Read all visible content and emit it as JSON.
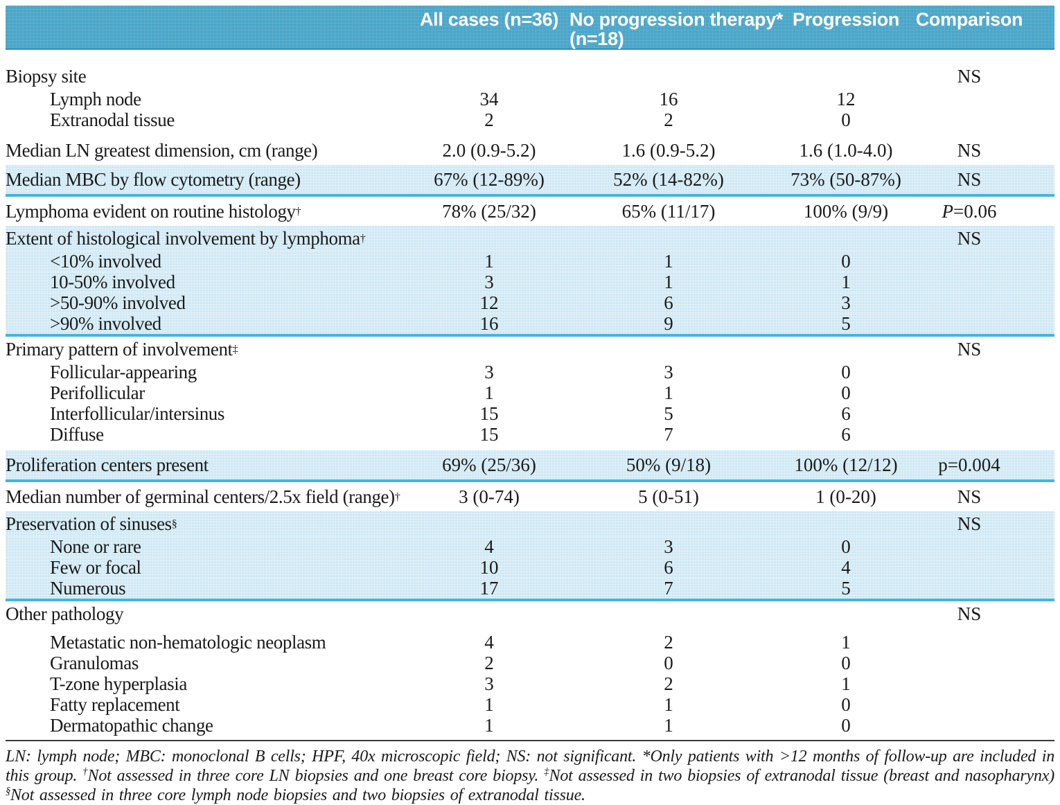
{
  "colors": {
    "header_bg": "#4ba6c9",
    "header_edge": "#3d98bb",
    "shaded_bg": "#cfe8f4",
    "divider": "#44b5dc",
    "text": "#1a1a1a"
  },
  "table": {
    "header": [
      {
        "label": "All cases (n=36)"
      },
      {
        "label": "No progression therapy*",
        "sublabel": "(n=18)"
      },
      {
        "label": "Progression"
      },
      {
        "label": "Comparison"
      }
    ],
    "rows": [
      {
        "kind": "head",
        "label": "Biopsy site",
        "values": [
          "",
          "",
          ""
        ],
        "comparison": "NS"
      },
      {
        "kind": "sub",
        "label": "Lymph node",
        "values": [
          "34",
          "16",
          "12"
        ],
        "comparison": ""
      },
      {
        "kind": "sub",
        "label": "Extranodal tissue",
        "values": [
          "2",
          "2",
          "0"
        ],
        "comparison": ""
      },
      {
        "kind": "stat",
        "gap": true,
        "label": "Median LN greatest dimension, cm (range)",
        "values": [
          "2.0 (0.9-5.2)",
          "1.6 (0.9-5.2)",
          "1.6 (1.0-4.0)"
        ],
        "comparison": "NS"
      },
      {
        "kind": "stat",
        "shaded": true,
        "divider": true,
        "label": "Median MBC by flow cytometry (range)",
        "values": [
          "67% (12-89%)",
          "52% (14-82%)",
          "73% (50-87%)"
        ],
        "comparison": "NS"
      },
      {
        "kind": "stat",
        "label": "Lymphoma evident on routine histology",
        "sup": "†",
        "values": [
          "78% (25/32)",
          "65% (11/17)",
          "100% (9/9)"
        ],
        "comparison": {
          "i": "P",
          "t": "=0.06"
        }
      },
      {
        "kind": "head",
        "shaded": true,
        "label": "Extent of histological involvement by lymphoma",
        "sup": "†",
        "values": [
          "",
          "",
          ""
        ],
        "comparison": "NS"
      },
      {
        "kind": "sub",
        "shaded": true,
        "label": "<10% involved",
        "values": [
          "1",
          "1",
          "0"
        ],
        "comparison": ""
      },
      {
        "kind": "sub",
        "shaded": true,
        "label": "10-50% involved",
        "values": [
          "3",
          "1",
          "1"
        ],
        "comparison": ""
      },
      {
        "kind": "sub",
        "shaded": true,
        "label": ">50-90% involved",
        "values": [
          "12",
          "6",
          "3"
        ],
        "comparison": ""
      },
      {
        "kind": "sub",
        "shaded": true,
        "divider": true,
        "label": ">90% involved",
        "values": [
          "16",
          "9",
          "5"
        ],
        "comparison": ""
      },
      {
        "kind": "head",
        "label": "Primary pattern of involvement",
        "sup": "‡",
        "values": [
          "",
          "",
          ""
        ],
        "comparison": "NS"
      },
      {
        "kind": "sub",
        "label": "Follicular-appearing",
        "values": [
          "3",
          "3",
          "0"
        ],
        "comparison": ""
      },
      {
        "kind": "sub",
        "label": "Perifollicular",
        "values": [
          "1",
          "1",
          "0"
        ],
        "comparison": ""
      },
      {
        "kind": "sub",
        "label": "Interfollicular/intersinus",
        "values": [
          "15",
          "5",
          "6"
        ],
        "comparison": ""
      },
      {
        "kind": "sub",
        "label": "Diffuse",
        "values": [
          "15",
          "7",
          "6"
        ],
        "comparison": ""
      },
      {
        "kind": "stat",
        "gap": true,
        "shaded": true,
        "divider": true,
        "label": "Proliferation centers present",
        "values": [
          "69% (25/36)",
          "50% (9/18)",
          "100% (12/12)"
        ],
        "comparison": "p=0.004"
      },
      {
        "kind": "stat",
        "label": "Median number of germinal centers/2.5x field (range)",
        "sup": "†",
        "values": [
          "3 (0-74)",
          "5 (0-51)",
          "1 (0-20)"
        ],
        "comparison": "NS"
      },
      {
        "kind": "head",
        "shaded": true,
        "label": "Preservation of sinuses",
        "sup": "§",
        "values": [
          "",
          "",
          ""
        ],
        "comparison": "NS"
      },
      {
        "kind": "sub",
        "shaded": true,
        "label": "None or rare",
        "values": [
          "4",
          "3",
          "0"
        ],
        "comparison": ""
      },
      {
        "kind": "sub",
        "shaded": true,
        "label": "Few or focal",
        "values": [
          "10",
          "6",
          "4"
        ],
        "comparison": ""
      },
      {
        "kind": "sub",
        "shaded": true,
        "divider": true,
        "label": "Numerous",
        "values": [
          "17",
          "7",
          "5"
        ],
        "comparison": ""
      },
      {
        "kind": "head",
        "label": "Other pathology",
        "values": [
          "",
          "",
          ""
        ],
        "comparison": "NS"
      },
      {
        "kind": "sub",
        "gap": true,
        "label": "Metastatic non-hematologic neoplasm",
        "values": [
          "4",
          "2",
          "1"
        ],
        "comparison": ""
      },
      {
        "kind": "sub",
        "label": "Granulomas",
        "values": [
          "2",
          "0",
          "0"
        ],
        "comparison": ""
      },
      {
        "kind": "sub",
        "label": "T-zone hyperplasia",
        "values": [
          "3",
          "2",
          "1"
        ],
        "comparison": ""
      },
      {
        "kind": "sub",
        "label": "Fatty replacement",
        "values": [
          "1",
          "1",
          "0"
        ],
        "comparison": ""
      },
      {
        "kind": "sub",
        "label": "Dermatopathic change",
        "values": [
          "1",
          "1",
          "0"
        ],
        "comparison": ""
      }
    ]
  },
  "footnote": {
    "segments": [
      {
        "t": "LN: lymph node; MBC: monoclonal B cells; HPF, 40x microscopic field; NS: not significant. *Only patients with >12 months of follow-up are included in this group. "
      },
      {
        "s": "†"
      },
      {
        "t": "Not assessed in three core LN biopsies and one breast core biopsy. "
      },
      {
        "s": "‡"
      },
      {
        "t": "Not assessed in two biopsies of extranodal tissue (breast and nasopharynx) "
      },
      {
        "s": "§"
      },
      {
        "t": "Not assessed in three core lymph node biopsies and two biopsies of extranodal tissue."
      }
    ]
  }
}
